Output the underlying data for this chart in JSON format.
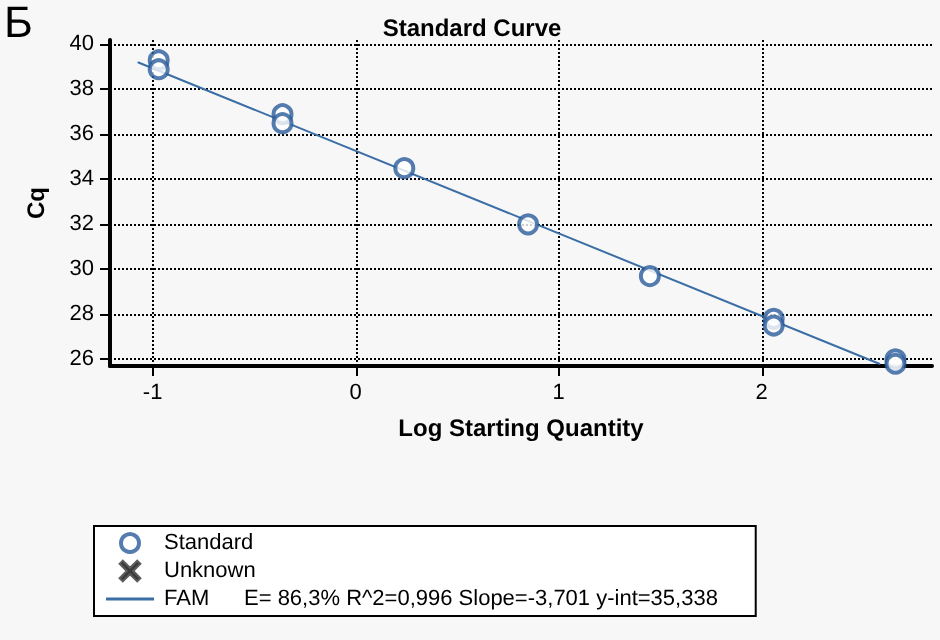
{
  "chart_data": {
    "type": "scatter",
    "title": "Standard Curve",
    "xlabel": "Log Starting Quantity",
    "ylabel": "Cq",
    "annotations": [
      "Б",
      "E= 86,3% R^2=0,996 Slope=-3,701 y-int=35,338"
    ],
    "xlim": [
      -1.21,
      2.84
    ],
    "ylim": [
      25.7,
      40.2
    ],
    "xticks": [
      -1,
      0,
      1,
      2
    ],
    "yticks": [
      26,
      28,
      30,
      32,
      34,
      36,
      38,
      40
    ],
    "grid": true,
    "legend": "bottom left",
    "series": [
      {
        "name": "Standard",
        "marker": "circle",
        "color": "#2a5b9a",
        "x": [
          -0.97,
          -0.97,
          -0.36,
          -0.36,
          0.24,
          0.85,
          1.45,
          2.06,
          2.06,
          2.66,
          2.66
        ],
        "values": [
          39.3,
          38.9,
          36.9,
          36.5,
          34.5,
          32.0,
          29.7,
          27.8,
          27.5,
          26.0,
          25.8
        ]
      },
      {
        "name": "Unknown",
        "type": "scatter",
        "marker": "cross",
        "color": "#333333"
      },
      {
        "name": "FAM",
        "type": "line",
        "marker": "none",
        "line_style": "solid",
        "color": "#3a6ea5",
        "x": [
          -1.07,
          2.58
        ],
        "values": [
          39.2,
          25.8
        ]
      }
    ]
  }
}
